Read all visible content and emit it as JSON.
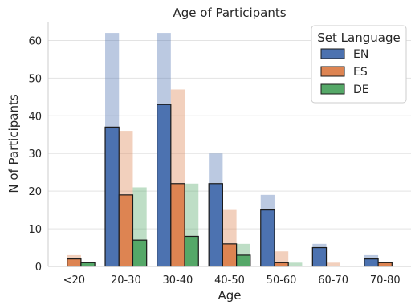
{
  "chart_data": {
    "type": "bar",
    "title": "Age of Participants",
    "xlabel": "Age",
    "ylabel": "N of Participants",
    "categories": [
      "<20",
      "20-30",
      "30-40",
      "40-50",
      "50-60",
      "60-70",
      "70-80"
    ],
    "ylim": [
      0,
      65
    ],
    "yticks": [
      0,
      10,
      20,
      30,
      40,
      50,
      60
    ],
    "grid": "horizontal",
    "legend": {
      "title": "Set Language",
      "placement": "top-right"
    },
    "series": [
      {
        "name": "EN",
        "color": "#4c72b0",
        "values": [
          0,
          37,
          43,
          22,
          15,
          5,
          2
        ]
      },
      {
        "name": "ES",
        "color": "#dd8452",
        "values": [
          2,
          19,
          22,
          6,
          1,
          0,
          1
        ]
      },
      {
        "name": "DE",
        "color": "#55a868",
        "values": [
          1,
          7,
          8,
          3,
          0,
          0,
          0
        ]
      }
    ],
    "background_series": [
      {
        "name": "EN",
        "color": "#4c72b0",
        "values": [
          0,
          62,
          62,
          30,
          19,
          6,
          3
        ]
      },
      {
        "name": "ES",
        "color": "#dd8452",
        "values": [
          3,
          36,
          47,
          15,
          4,
          1,
          1
        ]
      },
      {
        "name": "DE",
        "color": "#55a868",
        "values": [
          1,
          21,
          22,
          6,
          1,
          0,
          0
        ]
      }
    ]
  }
}
